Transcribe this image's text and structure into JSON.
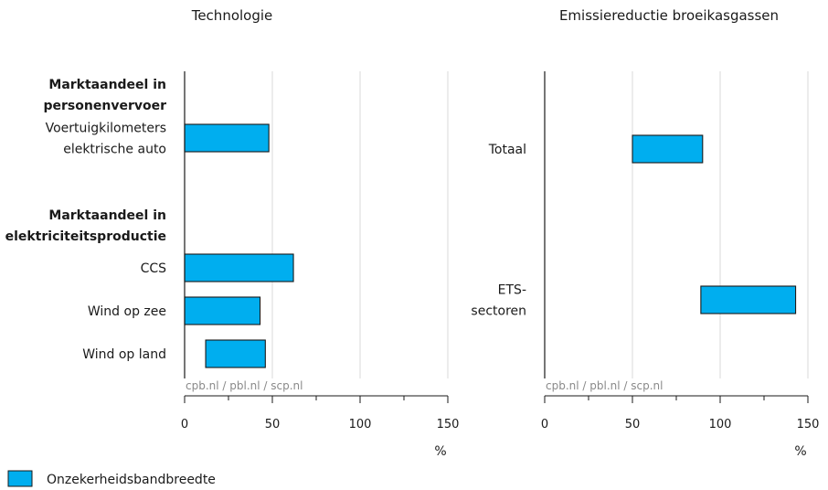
{
  "chart_data": [
    {
      "type": "bar",
      "orientation": "horizontal",
      "style": "floating-range",
      "title": "Technologie",
      "xlabel": "%",
      "xlim": [
        0,
        150
      ],
      "x_ticks": [
        "0",
        "50",
        "100",
        "150"
      ],
      "source": "cpb.nl / pbl.nl / scp.nl",
      "grid": true,
      "groups": [
        {
          "heading": [
            "Marktaandeel in",
            "personenvervoer"
          ],
          "rows": [
            {
              "label": [
                "Voertuigkilometers",
                "elektrische auto"
              ],
              "low": 0,
              "high": 48
            }
          ]
        },
        {
          "heading": [
            "Marktaandeel in",
            "elektriciteitsproductie"
          ],
          "rows": [
            {
              "label": [
                "CCS"
              ],
              "low": 0,
              "high": 62
            },
            {
              "label": [
                "Wind op zee"
              ],
              "low": 0,
              "high": 43
            },
            {
              "label": [
                "Wind op land"
              ],
              "low": 12,
              "high": 46
            }
          ]
        }
      ]
    },
    {
      "type": "bar",
      "orientation": "horizontal",
      "style": "floating-range",
      "title": "Emissiereductie broeikasgassen",
      "xlabel": "%",
      "xlim": [
        0,
        150
      ],
      "x_ticks": [
        "0",
        "50",
        "100",
        "150"
      ],
      "source": "cpb.nl / pbl.nl / scp.nl",
      "grid": true,
      "rows": [
        {
          "label": [
            "Totaal"
          ],
          "low": 50,
          "high": 90
        },
        {
          "label": [
            "ETS-",
            "sectoren"
          ],
          "low": 89,
          "high": 143
        }
      ]
    }
  ],
  "legend": {
    "label": "Onzekerheidsbandbreedte",
    "color": "#00AEEF"
  },
  "colors": {
    "bar": "#00AEEF",
    "grid": "#d9d9d9",
    "axis": "#1a1a1a",
    "source_text": "#8a8a8a"
  }
}
